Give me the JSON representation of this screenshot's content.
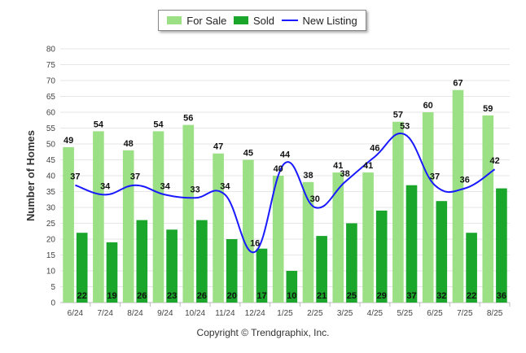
{
  "chart_data": {
    "type": "bar",
    "categories": [
      "6/24",
      "7/24",
      "8/24",
      "9/24",
      "10/24",
      "11/24",
      "12/24",
      "1/25",
      "2/25",
      "3/25",
      "4/25",
      "5/25",
      "6/25",
      "7/25",
      "8/25"
    ],
    "series": [
      {
        "name": "For Sale",
        "type": "bar",
        "color": "#9be084",
        "values": [
          49,
          54,
          48,
          54,
          56,
          47,
          45,
          40,
          38,
          41,
          41,
          57,
          60,
          67,
          59
        ]
      },
      {
        "name": "Sold",
        "type": "bar",
        "color": "#1aa52b",
        "values": [
          22,
          19,
          26,
          23,
          26,
          20,
          17,
          10,
          21,
          25,
          29,
          37,
          32,
          22,
          36
        ]
      },
      {
        "name": "New Listing",
        "type": "line",
        "color": "#1a1aff",
        "values": [
          37,
          34,
          37,
          34,
          33,
          34,
          16,
          44,
          30,
          38,
          46,
          53,
          37,
          36,
          42
        ]
      }
    ],
    "ylabel": "Number of Homes",
    "xlabel": "",
    "ylim": [
      0,
      80
    ],
    "yticks": [
      0,
      5,
      10,
      15,
      20,
      25,
      30,
      35,
      40,
      45,
      50,
      55,
      60,
      65,
      70,
      75,
      80
    ],
    "grid": true,
    "legend_position": "top-center"
  },
  "footer": "Copyright © Trendgraphix, Inc."
}
